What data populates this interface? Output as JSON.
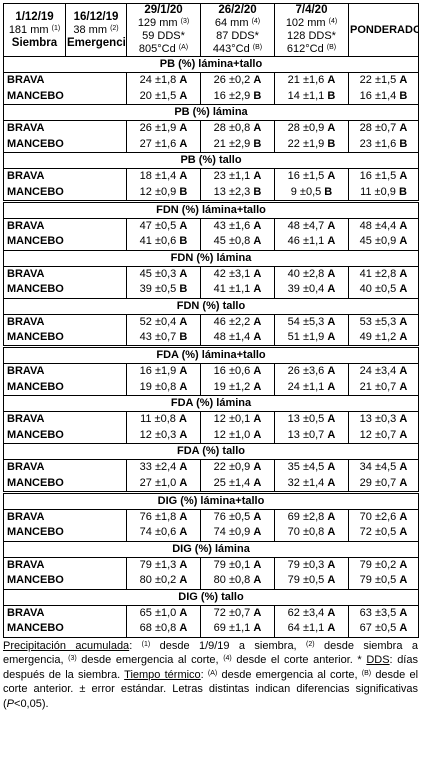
{
  "header": {
    "cols": [
      {
        "date": "1/12/19",
        "mm": "181 mm",
        "ref": "(1)",
        "label": "Siembra"
      },
      {
        "date": "16/12/19",
        "mm": "38 mm",
        "ref": "(2)",
        "label": "Emergencia"
      },
      {
        "date": "29/1/20",
        "mm": "129 mm",
        "ref": "(3)",
        "dds": "59 DDS*",
        "cd": "805°Cd",
        "cdref": "(A)"
      },
      {
        "date": "26/2/20",
        "mm": "64 mm",
        "ref": "(4)",
        "dds": "87 DDS*",
        "cd": "443°Cd",
        "cdref": "(B)"
      },
      {
        "date": "7/4/20",
        "mm": "102 mm",
        "ref": "(4)",
        "dds": "128 DDS*",
        "cd": "612°Cd",
        "cdref": "(B)"
      }
    ],
    "ponderado": "PONDERADO"
  },
  "sections": [
    {
      "title": "PB (%) lámina+tallo",
      "thick": false,
      "rows": [
        {
          "name": "BRAVA",
          "v": [
            "24 ±1,8 A",
            "26 ±0,2 A",
            "21 ±1,6 A",
            "22 ±1,5 A"
          ]
        },
        {
          "name": "MANCEBO",
          "v": [
            "20 ±1,5 A",
            "16 ±2,9 B",
            "14 ±1,1 B",
            "16 ±1,4 B"
          ]
        }
      ]
    },
    {
      "title": "PB (%) lámina",
      "thick": false,
      "rows": [
        {
          "name": "BRAVA",
          "v": [
            "26 ±1,9 A",
            "28 ±0,8 A",
            "28 ±0,9 A",
            "28 ±0,7 A"
          ]
        },
        {
          "name": "MANCEBO",
          "v": [
            "27 ±1,6 A",
            "21 ±2,9 B",
            "22 ±1,9 B",
            "23 ±1,6 B"
          ]
        }
      ]
    },
    {
      "title": "PB (%) tallo",
      "thick": false,
      "rows": [
        {
          "name": "BRAVA",
          "v": [
            "18 ±1,4 A",
            "23 ±1,1 A",
            "16 ±1,5 A",
            "16 ±1,5 A"
          ]
        },
        {
          "name": "MANCEBO",
          "v": [
            "12 ±0,9 B",
            "13 ±2,3 B",
            "9 ±0,5 B",
            "11 ±0,9 B"
          ]
        }
      ]
    },
    {
      "title": "FDN (%) lámina+tallo",
      "thick": true,
      "rows": [
        {
          "name": "BRAVA",
          "v": [
            "47 ±0,5 A",
            "43 ±1,6 A",
            "48 ±4,7 A",
            "48 ±4,4 A"
          ]
        },
        {
          "name": "MANCEBO",
          "v": [
            "41 ±0,6 B",
            "45 ±0,8 A",
            "46 ±1,1 A",
            "45 ±0,9 A"
          ]
        }
      ]
    },
    {
      "title": "FDN (%) lámina",
      "thick": false,
      "rows": [
        {
          "name": "BRAVA",
          "v": [
            "45 ±0,3 A",
            "42 ±3,1 A",
            "40 ±2,8 A",
            "41 ±2,8 A"
          ]
        },
        {
          "name": "MANCEBO",
          "v": [
            "39 ±0,5 B",
            "41 ±1,1 A",
            "39 ±0,4 A",
            "40 ±0,5 A"
          ]
        }
      ]
    },
    {
      "title": "FDN (%) tallo",
      "thick": false,
      "rows": [
        {
          "name": "BRAVA",
          "v": [
            "52 ±0,4 A",
            "46 ±2,2 A",
            "54 ±5,3 A",
            "53 ±5,3 A"
          ]
        },
        {
          "name": "MANCEBO",
          "v": [
            "43 ±0,7 B",
            "48 ±1,4 A",
            "51 ±1,9 A",
            "49 ±1,2 A"
          ]
        }
      ]
    },
    {
      "title": "FDA (%) lámina+tallo",
      "thick": true,
      "rows": [
        {
          "name": "BRAVA",
          "v": [
            "16 ±1,9 A",
            "16 ±0,6 A",
            "26 ±3,6 A",
            "24 ±3,4 A"
          ]
        },
        {
          "name": "MANCEBO",
          "v": [
            "19 ±0,8 A",
            "19 ±1,2 A",
            "24 ±1,1 A",
            "21 ±0,7 A"
          ]
        }
      ]
    },
    {
      "title": "FDA (%) lámina",
      "thick": false,
      "rows": [
        {
          "name": "BRAVA",
          "v": [
            "11 ±0,8 A",
            "12 ±0,1 A",
            "13 ±0,5 A",
            "13 ±0,3 A"
          ]
        },
        {
          "name": "MANCEBO",
          "v": [
            "12 ±0,3 A",
            "12 ±1,0 A",
            "13 ±0,7 A",
            "12 ±0,7 A"
          ]
        }
      ]
    },
    {
      "title": "FDA (%) tallo",
      "thick": false,
      "rows": [
        {
          "name": "BRAVA",
          "v": [
            "33 ±2,4 A",
            "22 ±0,9 A",
            "35 ±4,5 A",
            "34 ±4,5 A"
          ]
        },
        {
          "name": "MANCEBO",
          "v": [
            "27 ±1,0 A",
            "25 ±1,4 A",
            "32 ±1,4 A",
            "29 ±0,7 A"
          ]
        }
      ]
    },
    {
      "title": "DIG (%) lámina+tallo",
      "thick": true,
      "rows": [
        {
          "name": "BRAVA",
          "v": [
            "76 ±1,8 A",
            "76 ±0,5 A",
            "69 ±2,8 A",
            "70 ±2,6 A"
          ]
        },
        {
          "name": "MANCEBO",
          "v": [
            "74 ±0,6 A",
            "74 ±0,9 A",
            "70 ±0,8 A",
            "72 ±0,5 A"
          ]
        }
      ]
    },
    {
      "title": "DIG (%) lámina",
      "thick": false,
      "rows": [
        {
          "name": "BRAVA",
          "v": [
            "79 ±1,3 A",
            "79 ±0,1 A",
            "79 ±0,3 A",
            "79 ±0,2 A"
          ]
        },
        {
          "name": "MANCEBO",
          "v": [
            "80 ±0,2 A",
            "80 ±0,8 A",
            "79 ±0,5 A",
            "79 ±0,5 A"
          ]
        }
      ]
    },
    {
      "title": "DIG (%) tallo",
      "thick": false,
      "rows": [
        {
          "name": "BRAVA",
          "v": [
            "65 ±1,0 A",
            "72 ±0,7 A",
            "62 ±3,4 A",
            "63 ±3,5 A"
          ]
        },
        {
          "name": "MANCEBO",
          "v": [
            "68 ±0,8 A",
            "69 ±1,1 A",
            "64 ±1,1 A",
            "67 ±0,5 A"
          ]
        }
      ]
    }
  ],
  "note": {
    "precip_label": "Precipitación acumulada",
    "p1_ref": "(1)",
    "p1": "desde 1/9/19 a siembra,",
    "p2_ref": "(2)",
    "p2": "desde siembra a emergencia,",
    "p3_ref": "(3)",
    "p3": "desde emergencia al corte,",
    "p4_ref": "(4)",
    "p4": "desde el corte anterior. *",
    "dds_label": "DDS",
    "dds_text": ": días después de la siembra.",
    "tt_label": "Tiempo térmico",
    "ta_ref": "(A)",
    "ta": "desde emergencia al corte,",
    "tb_ref": "(B)",
    "tb": "desde el corte anterior. ± error estándar. Letras distintas indican diferencias significativas (",
    "p_italic": "P",
    "p_end": "<0,05)."
  }
}
